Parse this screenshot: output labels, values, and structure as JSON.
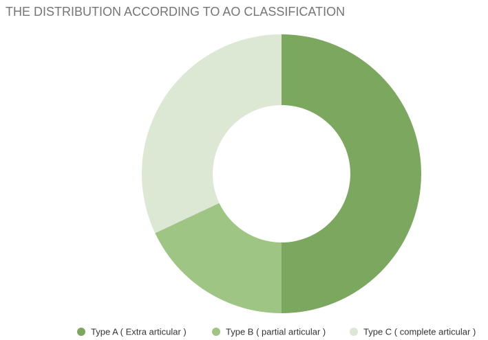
{
  "chart_data": {
    "type": "donut",
    "title": "THE DISTRIBUTION ACCORDING TO AO CLASSIFICATION",
    "categories": [
      "Type A ( Extra articular )",
      "Type B ( partial articular )",
      "Type C ( complete articular )"
    ],
    "values": [
      50,
      18,
      32
    ],
    "colors": [
      "#7ba75f",
      "#9fc585",
      "#dce8d3"
    ],
    "legend": "bottom"
  }
}
